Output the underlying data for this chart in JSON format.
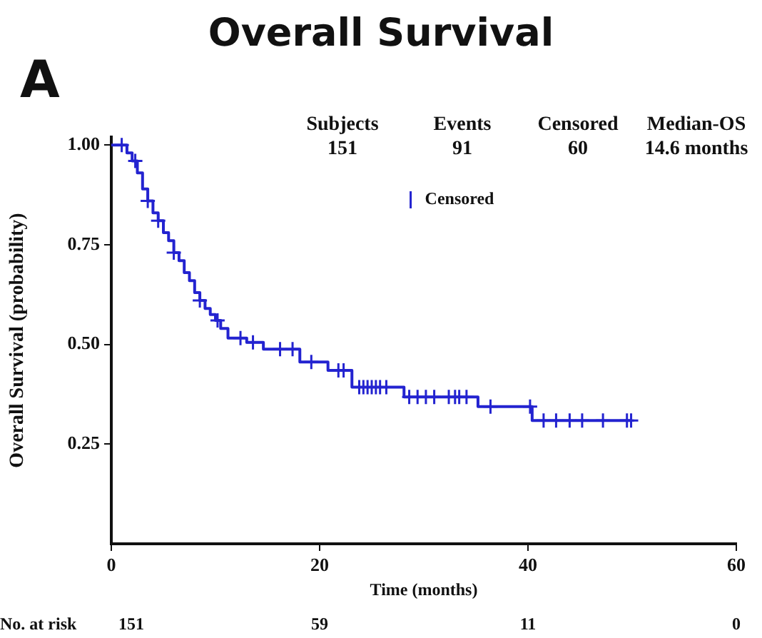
{
  "chart_data": {
    "type": "step",
    "title": "Overall Survival",
    "xlabel": "Time (months)",
    "ylabel": "Overall Survival (probability)",
    "xlim": [
      0,
      60
    ],
    "xticks": [
      0,
      20,
      40,
      60
    ],
    "ylim": [
      0,
      1.02
    ],
    "yticks": [
      {
        "value": 0.25,
        "label": "0.25"
      },
      {
        "value": 0.5,
        "label": "0.50"
      },
      {
        "value": 0.75,
        "label": "0.75"
      },
      {
        "value": 1,
        "label": "1.00"
      }
    ],
    "grid": false,
    "legend": "top",
    "series": [
      {
        "color": "#2323d0",
        "x": [
          0,
          1.5,
          2,
          2.5,
          3,
          3.5,
          4,
          4.5,
          5,
          5.5,
          6,
          6.5,
          7,
          7.5,
          8,
          8.5,
          9,
          9.5,
          10,
          10.5,
          11.2,
          13.0,
          14.6,
          18.1,
          20.8,
          23.1,
          28.1,
          35.2,
          40.4,
          50
        ],
        "values": [
          1.0,
          0.98,
          0.96,
          0.93,
          0.89,
          0.86,
          0.83,
          0.81,
          0.78,
          0.76,
          0.73,
          0.71,
          0.68,
          0.66,
          0.63,
          0.61,
          0.59,
          0.575,
          0.56,
          0.54,
          0.516,
          0.505,
          0.488,
          0.456,
          0.435,
          0.393,
          0.368,
          0.344,
          0.309,
          0.309
        ]
      },
      {
        "type": "scatter",
        "name": "Censored",
        "color": "#2323d0",
        "marker": "cross",
        "x": [
          1,
          2.3,
          3.5,
          4.5,
          6,
          8.5,
          10.2,
          12.4,
          13.6,
          16.2,
          17.4,
          19.2,
          21.8,
          22.3,
          23.8,
          24.2,
          24.6,
          25,
          25.4,
          25.8,
          26.4,
          28.6,
          29.4,
          30.2,
          31,
          32.4,
          33,
          33.4,
          34.1,
          36.4,
          40.2,
          41.5,
          42.7,
          44,
          45.2,
          47.2,
          49.5,
          49.9
        ],
        "values": [
          1.0,
          0.96,
          0.86,
          0.81,
          0.73,
          0.61,
          0.56,
          0.516,
          0.505,
          0.488,
          0.488,
          0.456,
          0.435,
          0.435,
          0.393,
          0.393,
          0.393,
          0.393,
          0.393,
          0.393,
          0.393,
          0.368,
          0.368,
          0.368,
          0.368,
          0.368,
          0.368,
          0.368,
          0.368,
          0.344,
          0.344,
          0.309,
          0.309,
          0.309,
          0.309,
          0.309,
          0.309,
          0.309
        ]
      }
    ],
    "annotations": [
      "A",
      "Subjects",
      "151",
      "Events",
      "91",
      "Censored",
      "60",
      "Median-OS",
      "14.6 months",
      "No. at risk",
      "151",
      "59",
      "11",
      "0"
    ]
  }
}
